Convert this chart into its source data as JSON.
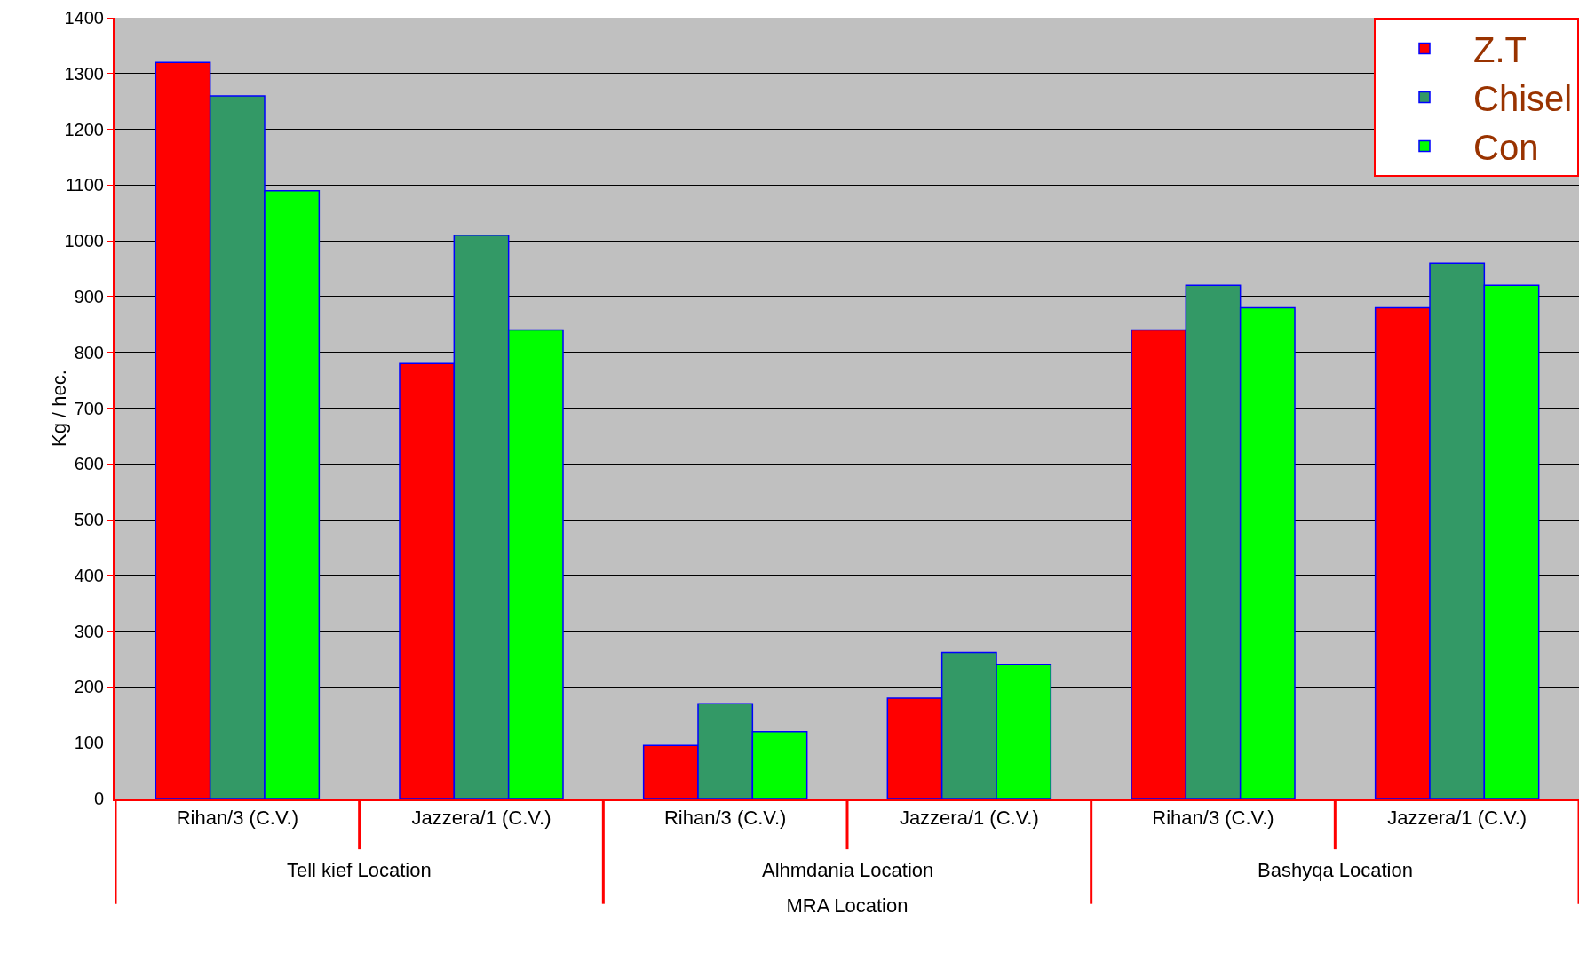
{
  "chart_data": {
    "type": "bar",
    "ylabel": "Kg / hec.",
    "xlabel": "MRA Location",
    "categories": [
      "Rihan/3 (C.V.)",
      "Jazzera/1 (C.V.)",
      "Rihan/3 (C.V.)",
      "Jazzera/1 (C.V.)",
      "Rihan/3 (C.V.)",
      "Jazzera/1 (C.V.)"
    ],
    "series": [
      {
        "name": "Z.T",
        "color": "#ff0000",
        "values": [
          1320,
          780,
          95,
          180,
          840,
          880
        ]
      },
      {
        "name": "Chisel",
        "color": "#339966",
        "values": [
          1260,
          1010,
          170,
          262,
          920,
          960
        ]
      },
      {
        "name": "Con",
        "color": "#00ff00",
        "values": [
          1090,
          840,
          120,
          240,
          880,
          920
        ]
      }
    ],
    "annotations": [
      "Tell kief Location",
      "Alhmdania Location",
      "Bashyqa Location"
    ],
    "ylim": [
      0,
      1400
    ],
    "yticks": [
      0,
      100,
      200,
      300,
      400,
      500,
      600,
      700,
      800,
      900,
      1000,
      1100,
      1200,
      1300,
      1400
    ],
    "grid": "y",
    "legend": "top right"
  }
}
